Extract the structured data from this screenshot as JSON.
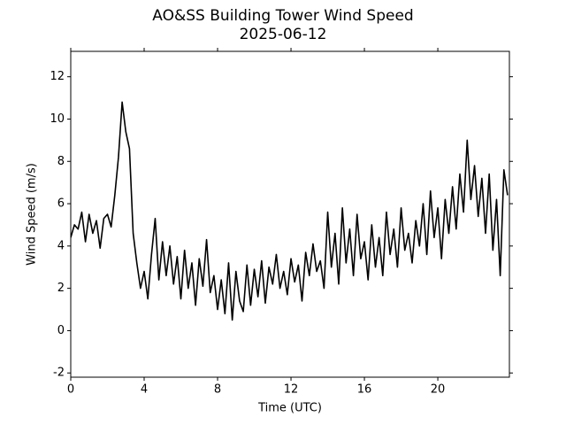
{
  "chart_data": {
    "type": "line",
    "title": "AO&SS Building Tower Wind Speed",
    "subtitle": "2025-06-12",
    "x_label": "Time (UTC)",
    "y_label": "Wind Speed (m/s)",
    "xlim": [
      0,
      23.9
    ],
    "ylim": [
      -2.2,
      13.2
    ],
    "xticks": [
      0,
      4,
      8,
      12,
      16,
      20
    ],
    "yticks": [
      -2,
      0,
      2,
      4,
      6,
      8,
      10,
      12
    ],
    "grid": false,
    "x": [
      0,
      0.2,
      0.4,
      0.6,
      0.8,
      1.0,
      1.2,
      1.4,
      1.6,
      1.8,
      2.0,
      2.2,
      2.4,
      2.6,
      2.8,
      3.0,
      3.2,
      3.4,
      3.6,
      3.8,
      4.0,
      4.2,
      4.4,
      4.6,
      4.8,
      5.0,
      5.2,
      5.4,
      5.6,
      5.8,
      6.0,
      6.2,
      6.4,
      6.6,
      6.8,
      7.0,
      7.2,
      7.4,
      7.6,
      7.8,
      8.0,
      8.2,
      8.4,
      8.6,
      8.8,
      9.0,
      9.2,
      9.4,
      9.6,
      9.8,
      10.0,
      10.2,
      10.4,
      10.6,
      10.8,
      11.0,
      11.2,
      11.4,
      11.6,
      11.8,
      12.0,
      12.2,
      12.4,
      12.6,
      12.8,
      13.0,
      13.2,
      13.4,
      13.6,
      13.8,
      14.0,
      14.2,
      14.4,
      14.6,
      14.8,
      15.0,
      15.2,
      15.4,
      15.6,
      15.8,
      16.0,
      16.2,
      16.4,
      16.6,
      16.8,
      17.0,
      17.2,
      17.4,
      17.6,
      17.8,
      18.0,
      18.2,
      18.4,
      18.6,
      18.8,
      19.0,
      19.2,
      19.4,
      19.6,
      19.8,
      20.0,
      20.2,
      20.4,
      20.6,
      20.8,
      21.0,
      21.2,
      21.4,
      21.6,
      21.8,
      22.0,
      22.2,
      22.4,
      22.6,
      22.8,
      23.0,
      23.2,
      23.4,
      23.6,
      23.8
    ],
    "series": [
      {
        "name": "Wind Speed",
        "color": "#000000",
        "values": [
          4.4,
          5.0,
          4.8,
          5.6,
          4.2,
          5.5,
          4.6,
          5.2,
          3.9,
          5.3,
          5.5,
          4.9,
          6.4,
          8.2,
          10.8,
          9.4,
          8.6,
          4.6,
          3.2,
          2.0,
          2.8,
          1.5,
          3.6,
          5.3,
          2.4,
          4.2,
          2.6,
          4.0,
          2.2,
          3.5,
          1.5,
          3.8,
          2.0,
          3.2,
          1.2,
          3.4,
          2.1,
          4.3,
          1.8,
          2.6,
          1.0,
          2.4,
          0.8,
          3.2,
          0.5,
          2.8,
          1.4,
          0.9,
          3.1,
          1.2,
          2.9,
          1.6,
          3.3,
          1.3,
          3.0,
          2.2,
          3.6,
          2.0,
          2.8,
          1.7,
          3.4,
          2.3,
          3.1,
          1.4,
          3.7,
          2.6,
          4.1,
          2.8,
          3.3,
          2.0,
          5.6,
          3.0,
          4.6,
          2.2,
          5.8,
          3.2,
          4.8,
          2.6,
          5.5,
          3.4,
          4.2,
          2.4,
          5.0,
          3.0,
          4.4,
          2.6,
          5.6,
          3.6,
          4.8,
          3.0,
          5.8,
          3.8,
          4.6,
          3.2,
          5.2,
          4.0,
          6.0,
          3.6,
          6.6,
          4.4,
          5.8,
          3.4,
          6.2,
          4.6,
          6.8,
          4.8,
          7.4,
          5.6,
          9.0,
          6.2,
          7.8,
          5.4,
          7.2,
          4.6,
          7.4,
          3.8,
          6.2,
          2.6,
          7.6,
          6.4
        ]
      }
    ]
  }
}
